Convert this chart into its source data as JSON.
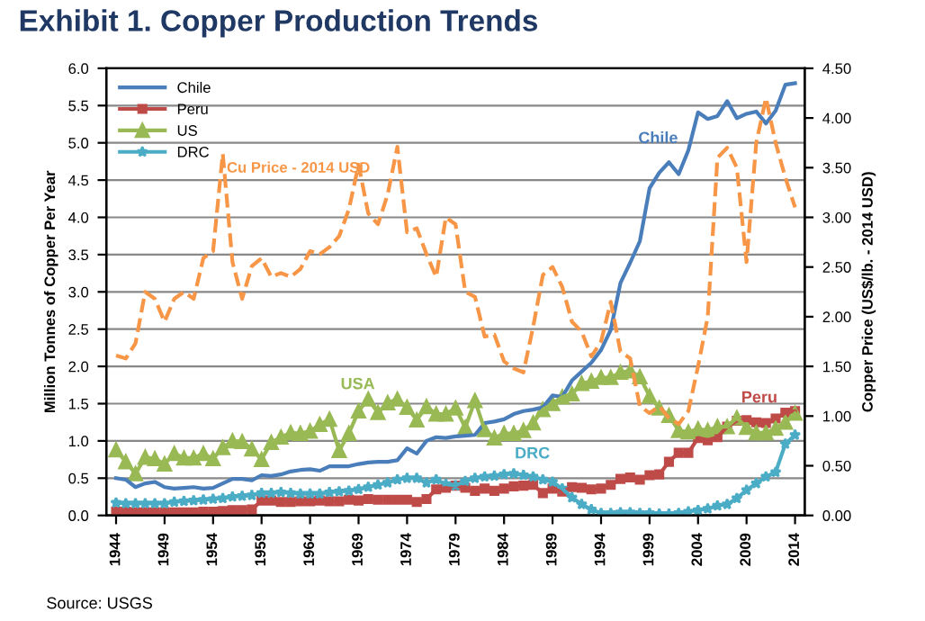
{
  "chart_data": {
    "type": "line",
    "title": "Exhibit 1. Copper Production Trends",
    "x": [
      1944,
      1945,
      1946,
      1947,
      1948,
      1949,
      1950,
      1951,
      1952,
      1953,
      1954,
      1955,
      1956,
      1957,
      1958,
      1959,
      1960,
      1961,
      1962,
      1963,
      1964,
      1965,
      1966,
      1967,
      1968,
      1969,
      1970,
      1971,
      1972,
      1973,
      1974,
      1975,
      1976,
      1977,
      1978,
      1979,
      1980,
      1981,
      1982,
      1983,
      1984,
      1985,
      1986,
      1987,
      1988,
      1989,
      1990,
      1991,
      1992,
      1993,
      1994,
      1995,
      1996,
      1997,
      1998,
      1999,
      2000,
      2001,
      2002,
      2003,
      2004,
      2005,
      2006,
      2007,
      2008,
      2009,
      2010,
      2011,
      2012,
      2013,
      2014
    ],
    "series": [
      {
        "name": "Chile",
        "color": "#4a7ebb",
        "marker": "none",
        "line_style": "solid",
        "values": [
          0.5,
          0.48,
          0.38,
          0.43,
          0.45,
          0.38,
          0.36,
          0.37,
          0.38,
          0.36,
          0.37,
          0.43,
          0.49,
          0.49,
          0.47,
          0.54,
          0.53,
          0.55,
          0.59,
          0.61,
          0.62,
          0.6,
          0.66,
          0.66,
          0.66,
          0.69,
          0.71,
          0.72,
          0.72,
          0.74,
          0.9,
          0.83,
          1.0,
          1.05,
          1.04,
          1.06,
          1.07,
          1.08,
          1.24,
          1.26,
          1.29,
          1.36,
          1.4,
          1.42,
          1.45,
          1.61,
          1.59,
          1.81,
          1.93,
          2.05,
          2.22,
          2.49,
          3.12,
          3.39,
          3.68,
          4.39,
          4.6,
          4.74,
          4.58,
          4.9,
          5.41,
          5.32,
          5.36,
          5.56,
          5.33,
          5.39,
          5.42,
          5.26,
          5.43,
          5.78,
          5.8
        ]
      },
      {
        "name": "Peru",
        "color": "#be4b48",
        "marker": "square",
        "line_style": "solid",
        "values": [
          0.05,
          0.05,
          0.04,
          0.04,
          0.04,
          0.04,
          0.04,
          0.04,
          0.04,
          0.05,
          0.05,
          0.06,
          0.07,
          0.07,
          0.08,
          0.2,
          0.2,
          0.18,
          0.18,
          0.19,
          0.19,
          0.2,
          0.19,
          0.19,
          0.21,
          0.2,
          0.22,
          0.21,
          0.21,
          0.21,
          0.21,
          0.18,
          0.22,
          0.35,
          0.37,
          0.4,
          0.37,
          0.33,
          0.36,
          0.33,
          0.36,
          0.39,
          0.4,
          0.41,
          0.3,
          0.36,
          0.32,
          0.38,
          0.37,
          0.35,
          0.36,
          0.41,
          0.49,
          0.51,
          0.48,
          0.54,
          0.55,
          0.72,
          0.84,
          0.84,
          1.04,
          1.01,
          1.05,
          1.19,
          1.27,
          1.28,
          1.25,
          1.24,
          1.3,
          1.38,
          1.4
        ]
      },
      {
        "name": "US",
        "color": "#98b954",
        "marker": "triangle",
        "line_style": "solid",
        "values": [
          0.88,
          0.72,
          0.56,
          0.78,
          0.76,
          0.69,
          0.83,
          0.77,
          0.77,
          0.83,
          0.76,
          0.91,
          1.0,
          0.99,
          0.89,
          0.75,
          0.98,
          1.05,
          1.11,
          1.1,
          1.13,
          1.22,
          1.29,
          0.87,
          1.1,
          1.4,
          1.56,
          1.38,
          1.51,
          1.56,
          1.45,
          1.28,
          1.46,
          1.36,
          1.36,
          1.44,
          1.18,
          1.54,
          1.15,
          1.04,
          1.1,
          1.1,
          1.14,
          1.24,
          1.42,
          1.5,
          1.59,
          1.63,
          1.77,
          1.8,
          1.85,
          1.85,
          1.92,
          1.94,
          1.86,
          1.6,
          1.44,
          1.34,
          1.14,
          1.12,
          1.16,
          1.14,
          1.19,
          1.19,
          1.31,
          1.18,
          1.11,
          1.11,
          1.17,
          1.25,
          1.37
        ]
      },
      {
        "name": "DRC",
        "color": "#4bacc6",
        "marker": "star",
        "line_style": "solid",
        "values": [
          0.17,
          0.16,
          0.16,
          0.16,
          0.16,
          0.16,
          0.18,
          0.19,
          0.2,
          0.21,
          0.22,
          0.23,
          0.25,
          0.26,
          0.27,
          0.3,
          0.3,
          0.31,
          0.3,
          0.29,
          0.29,
          0.29,
          0.31,
          0.32,
          0.33,
          0.35,
          0.38,
          0.41,
          0.44,
          0.48,
          0.5,
          0.5,
          0.44,
          0.48,
          0.42,
          0.4,
          0.46,
          0.5,
          0.52,
          0.53,
          0.55,
          0.56,
          0.54,
          0.52,
          0.48,
          0.45,
          0.36,
          0.24,
          0.15,
          0.08,
          0.03,
          0.03,
          0.04,
          0.04,
          0.03,
          0.03,
          0.02,
          0.02,
          0.03,
          0.05,
          0.07,
          0.09,
          0.13,
          0.15,
          0.23,
          0.34,
          0.43,
          0.52,
          0.58,
          0.96,
          1.08
        ]
      },
      {
        "color": "#f79646",
        "marker": "none",
        "line_style": "dashed",
        "axis": "y2",
        "values": [
          1.61,
          1.58,
          1.73,
          2.25,
          2.18,
          1.95,
          2.18,
          2.25,
          2.18,
          2.59,
          2.66,
          3.64,
          2.55,
          2.18,
          2.51,
          2.59,
          2.4,
          2.44,
          2.4,
          2.48,
          2.66,
          2.63,
          2.7,
          2.81,
          3.08,
          3.53,
          3.04,
          2.93,
          3.23,
          3.71,
          2.85,
          2.89,
          2.63,
          2.4,
          3.0,
          2.93,
          2.25,
          2.2,
          1.8,
          1.82,
          1.55,
          1.48,
          1.44,
          1.9,
          2.42,
          2.5,
          2.3,
          1.95,
          1.85,
          1.6,
          1.75,
          2.15,
          1.65,
          1.58,
          1.1,
          1.03,
          1.1,
          0.98,
          0.92,
          1.05,
          1.5,
          2.0,
          3.6,
          3.7,
          3.5,
          2.55,
          3.75,
          4.2,
          3.75,
          3.4,
          3.1
        ]
      }
    ],
    "xlim": [
      1943,
      2015
    ],
    "xticks": [
      1944,
      1949,
      1954,
      1959,
      1964,
      1969,
      1974,
      1979,
      1984,
      1989,
      1994,
      1999,
      2004,
      2009,
      2014
    ],
    "ylim": [
      0,
      6
    ],
    "yticks": [
      {
        "value": 0,
        "label": "0.0"
      },
      {
        "value": 0.5,
        "label": "0.5"
      },
      {
        "value": 1,
        "label": "1.0"
      },
      {
        "value": 1.5,
        "label": "1.5"
      },
      {
        "value": 2,
        "label": "2.0"
      },
      {
        "value": 2.5,
        "label": "2.5"
      },
      {
        "value": 3,
        "label": "3.0"
      },
      {
        "value": 3.5,
        "label": "3.5"
      },
      {
        "value": 4,
        "label": "4.0"
      },
      {
        "value": 4.5,
        "label": "4.5"
      },
      {
        "value": 5,
        "label": "5.0"
      },
      {
        "value": 5.5,
        "label": "5.5"
      },
      {
        "value": 6,
        "label": "6.0"
      }
    ],
    "y2lim": [
      0,
      4.5
    ],
    "y2ticks": [
      {
        "value": 0,
        "label": "0.00"
      },
      {
        "value": 0.5,
        "label": "0.50"
      },
      {
        "value": 1,
        "label": "1.00"
      },
      {
        "value": 1.5,
        "label": "1.50"
      },
      {
        "value": 2,
        "label": "2.00"
      },
      {
        "value": 2.5,
        "label": "2.50"
      },
      {
        "value": 3,
        "label": "3.00"
      },
      {
        "value": 3.5,
        "label": "3.50"
      },
      {
        "value": 4,
        "label": "4.00"
      },
      {
        "value": 4.5,
        "label": "4.50"
      }
    ],
    "ylabel": "Million Tonnes of Copper Per Year",
    "y2label": "Copper Price (US$/lb. - 2014 USD)",
    "grid": "y",
    "legend": "top left",
    "annotations": [
      "Chile",
      "Peru",
      "USA",
      "DRC",
      "Cu Price - 2014 USD",
      "Source: USGS"
    ]
  }
}
